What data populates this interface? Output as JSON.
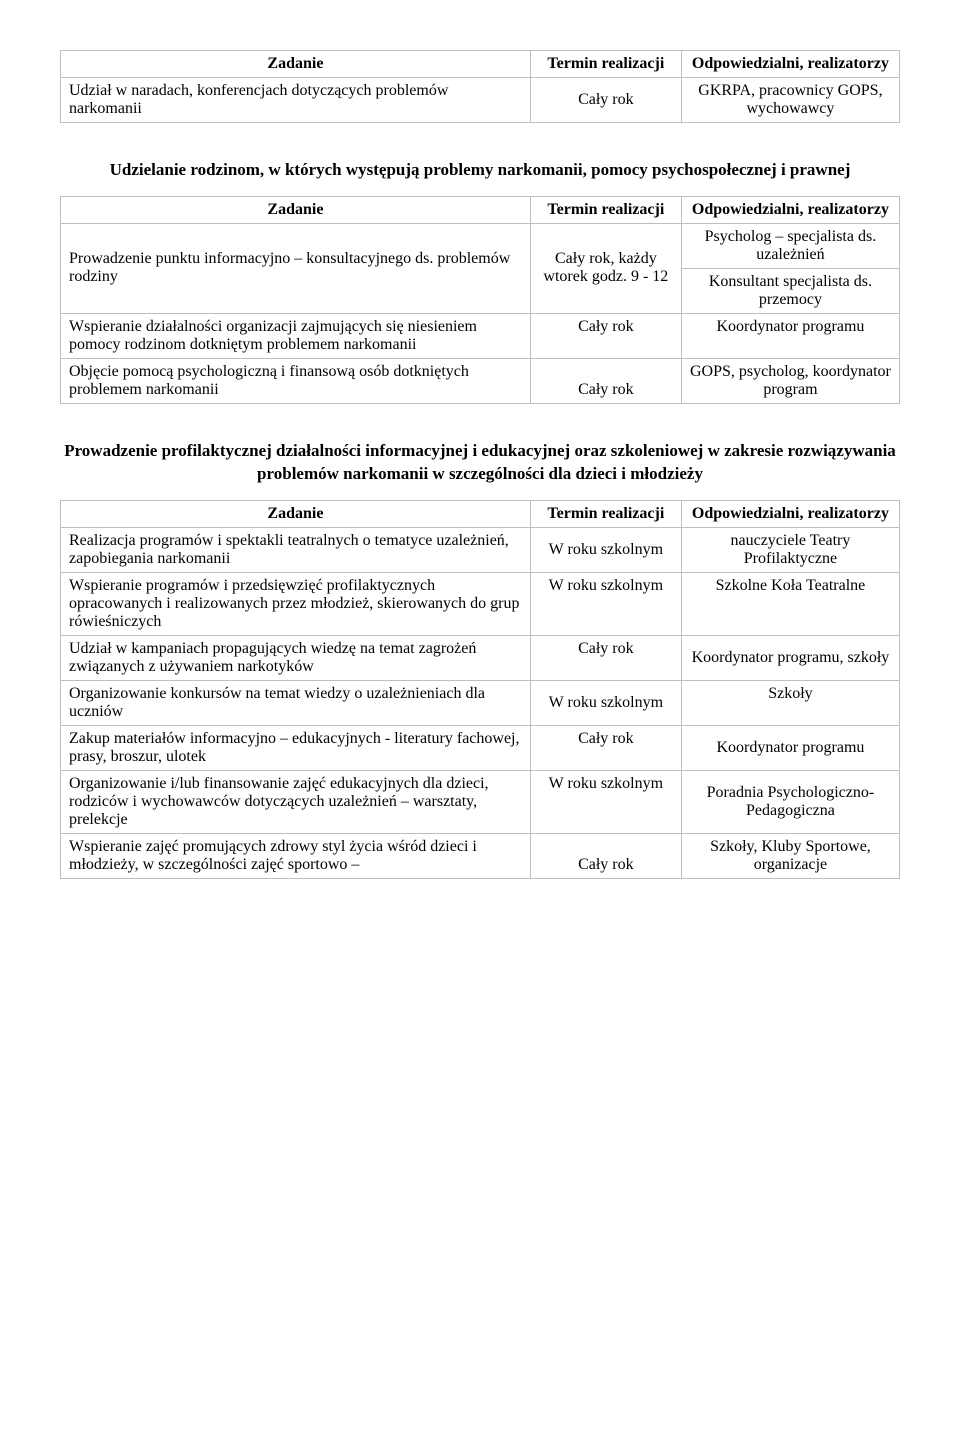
{
  "headers": {
    "task": "Zadanie",
    "term": "Termin realizacji",
    "resp": "Odpowiedzialni, realizatorzy"
  },
  "table1": {
    "rows": [
      {
        "task": "Udział w naradach, konferencjach dotyczących problemów narkomanii",
        "term": "Cały rok",
        "resp": "GKRPA, pracownicy GOPS, wychowawcy"
      }
    ]
  },
  "heading2": "Udzielanie rodzinom, w których występują problemy narkomanii, pomocy psychospołecznej i prawnej",
  "table2": {
    "row1": {
      "task": "Prowadzenie punktu informacyjno – konsultacyjnego ds. problemów rodziny",
      "term": "Cały rok, każdy wtorek godz. 9 - 12",
      "resp": "Psycholog – specjalista ds. uzależnień"
    },
    "row1b_resp": "Konsultant specjalista ds. przemocy",
    "row2": {
      "task": "Wspieranie działalności organizacji zajmujących się niesieniem pomocy rodzinom dotkniętym problemem narkomanii",
      "term": "Cały rok",
      "resp": "Koordynator programu"
    },
    "row3": {
      "task": "Objęcie pomocą psychologiczną i finansową osób dotkniętych problemem narkomanii",
      "term": "Cały rok",
      "resp": "GOPS, psycholog, koordynator program"
    }
  },
  "heading3": "Prowadzenie profilaktycznej działalności informacyjnej i edukacyjnej oraz szkoleniowej w zakresie rozwiązywania problemów narkomanii w szczególności dla dzieci i młodzieży",
  "table3": {
    "rows": [
      {
        "task": "Realizacja programów i spektakli teatralnych o tematyce uzależnień, zapobiegania narkomanii",
        "term": "W roku szkolnym",
        "resp": "nauczyciele Teatry Profilaktyczne"
      },
      {
        "task": "Wspieranie programów i przedsięwzięć profilaktycznych opracowanych i realizowanych przez młodzież, skierowanych do grup rówieśniczych",
        "term": "W roku szkolnym",
        "resp": "Szkolne Koła Teatralne"
      },
      {
        "task": "Udział w kampaniach propagujących wiedzę na temat zagrożeń związanych z używaniem narkotyków",
        "term": "Cały rok",
        "resp": "Koordynator programu, szkoły"
      },
      {
        "task": "Organizowanie konkursów na temat wiedzy o uzależnieniach dla uczniów",
        "term": "W roku szkolnym",
        "resp": "Szkoły"
      },
      {
        "task": "Zakup materiałów informacyjno – edukacyjnych - literatury fachowej, prasy, broszur, ulotek",
        "term": "Cały rok",
        "resp": "Koordynator programu"
      },
      {
        "task": "Organizowanie i/lub finansowanie zajęć edukacyjnych dla dzieci, rodziców i wychowawców  dotyczących uzależnień – warsztaty, prelekcje",
        "term": "W roku szkolnym",
        "resp": "Poradnia Psychologiczno-Pedagogiczna"
      },
      {
        "task": "Wspieranie zajęć promujących zdrowy styl życia wśród dzieci i młodzieży, w szczególności zajęć sportowo –",
        "term": "Cały rok",
        "resp": "Szkoły, Kluby Sportowe, organizacje"
      }
    ]
  }
}
